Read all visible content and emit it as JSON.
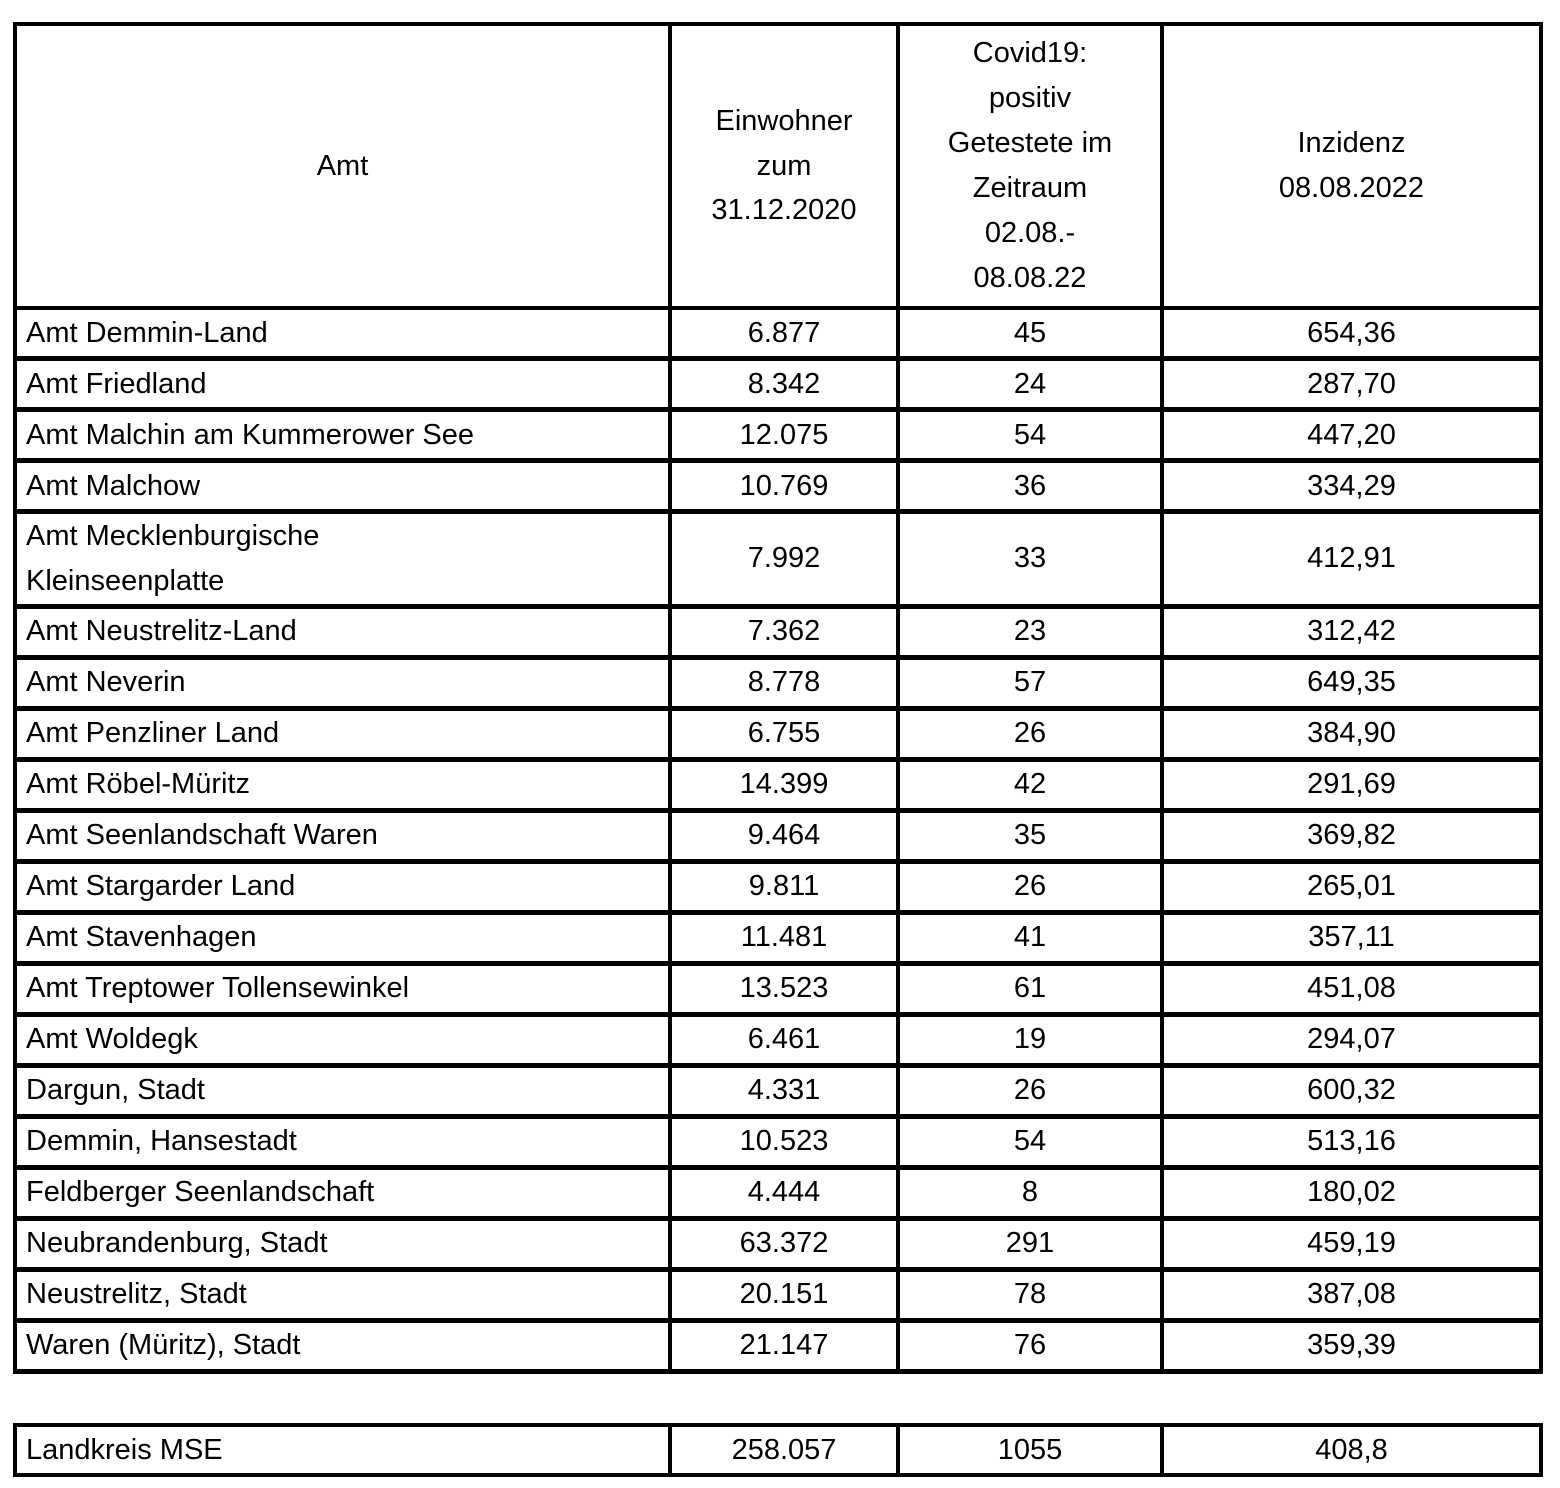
{
  "document": {
    "background_color": "#ffffff",
    "border_color": "#000000",
    "text_color": "#000000"
  },
  "main_table": {
    "columns": [
      {
        "label": "Amt"
      },
      {
        "label": "Einwohner\nzum\n31.12.2020"
      },
      {
        "label": "Covid19:\npositiv\nGetestete im\nZeitraum\n02.08.-\n08.08.22"
      },
      {
        "label": "Inzidenz\n08.08.2022"
      }
    ],
    "rows": [
      [
        "Amt Demmin-Land",
        "6.877",
        "45",
        "654,36"
      ],
      [
        "Amt Friedland",
        "8.342",
        "24",
        "287,70"
      ],
      [
        "Amt Malchin am Kummerower See",
        "12.075",
        "54",
        "447,20"
      ],
      [
        "Amt Malchow",
        "10.769",
        "36",
        "334,29"
      ],
      [
        "Amt Mecklenburgische\nKleinseenplatte",
        "7.992",
        "33",
        "412,91"
      ],
      [
        "Amt Neustrelitz-Land",
        "7.362",
        "23",
        "312,42"
      ],
      [
        "Amt Neverin",
        "8.778",
        "57",
        "649,35"
      ],
      [
        "Amt Penzliner Land",
        "6.755",
        "26",
        "384,90"
      ],
      [
        "Amt Röbel-Müritz",
        "14.399",
        "42",
        "291,69"
      ],
      [
        "Amt Seenlandschaft Waren",
        "9.464",
        "35",
        "369,82"
      ],
      [
        "Amt Stargarder Land",
        "9.811",
        "26",
        "265,01"
      ],
      [
        "Amt Stavenhagen",
        "11.481",
        "41",
        "357,11"
      ],
      [
        "Amt Treptower Tollensewinkel",
        "13.523",
        "61",
        "451,08"
      ],
      [
        "Amt Woldegk",
        "6.461",
        "19",
        "294,07"
      ],
      [
        "Dargun, Stadt",
        "4.331",
        "26",
        "600,32"
      ],
      [
        "Demmin, Hansestadt",
        "10.523",
        "54",
        "513,16"
      ],
      [
        "Feldberger Seenlandschaft",
        "4.444",
        "8",
        "180,02"
      ],
      [
        "Neubrandenburg, Stadt",
        "63.372",
        "291",
        "459,19"
      ],
      [
        "Neustrelitz, Stadt",
        "20.151",
        "78",
        "387,08"
      ],
      [
        "Waren (Müritz), Stadt",
        "21.147",
        "76",
        "359,39"
      ]
    ]
  },
  "summary_table": {
    "rows": [
      [
        "Landkreis MSE",
        "258.057",
        "1055",
        "408,8"
      ]
    ]
  }
}
